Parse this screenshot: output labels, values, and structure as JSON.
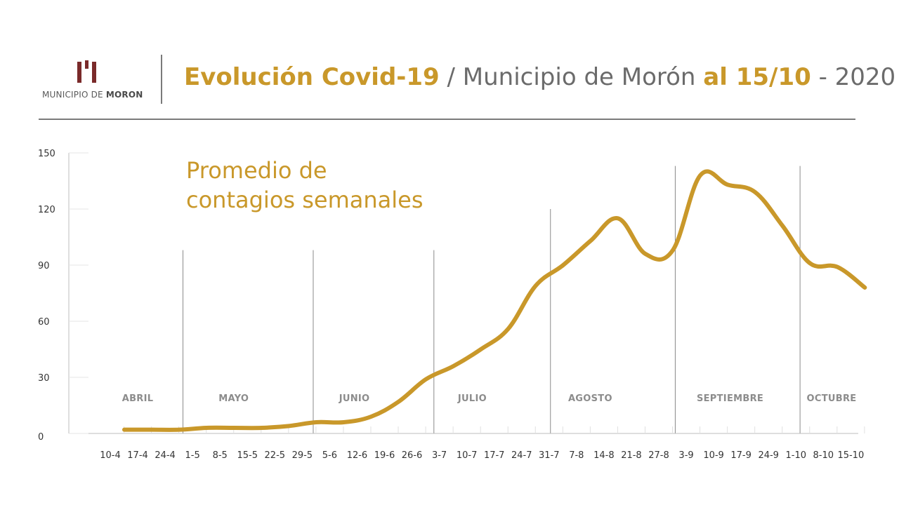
{
  "header": {
    "logo_prefix": "MUNICIPIO DE ",
    "logo_bold": "MORON",
    "title_part1": "Evolución Covid-19",
    "title_part2": " / Municipio de Morón ",
    "title_part3": "al 15/10",
    "title_part4": " - 2020"
  },
  "colors": {
    "accent": "#c9982a",
    "line": "#c9982a",
    "logo": "#7a2a2a",
    "text_gray": "#6b6b6b",
    "month_label": "#8c8c8c"
  },
  "chart_data": {
    "type": "line",
    "subtitle_line1": "Promedio de",
    "subtitle_line2": "contagios semanales",
    "ylim": [
      0,
      150
    ],
    "yticks": [
      0,
      30,
      60,
      90,
      120,
      150
    ],
    "categories": [
      "10-4",
      "17-4",
      "24-4",
      "1-5",
      "8-5",
      "15-5",
      "22-5",
      "29-5",
      "5-6",
      "12-6",
      "19-6",
      "26-6",
      "3-7",
      "10-7",
      "17-7",
      "24-7",
      "31-7",
      "7-8",
      "14-8",
      "21-8",
      "27-8",
      "3-9",
      "10-9",
      "17-9",
      "24-9",
      "1-10",
      "8-10",
      "15-10"
    ],
    "series": [
      {
        "values": [
          2,
          2,
          2,
          3,
          3,
          3,
          4,
          6,
          6,
          9,
          17,
          29,
          36,
          45,
          56,
          79,
          90,
          103,
          115,
          96,
          98,
          138,
          133,
          129,
          111,
          91,
          89,
          78
        ]
      }
    ],
    "months": [
      {
        "label": "ABRIL",
        "center": 1
      },
      {
        "label": "MAYO",
        "center": 4.5
      },
      {
        "label": "JUNIO",
        "center": 8.9
      },
      {
        "label": "JULIO",
        "center": 13.2
      },
      {
        "label": "AGOSTO",
        "center": 17.5
      },
      {
        "label": "SEPTIEMBRE",
        "center": 22.6
      },
      {
        "label": "OCTUBRE",
        "center": 26.3
      }
    ],
    "month_dividers": [
      {
        "x": 2.65,
        "top": 98
      },
      {
        "x": 7.4,
        "top": 98
      },
      {
        "x": 11.8,
        "top": 98
      },
      {
        "x": 16.05,
        "top": 120
      },
      {
        "x": 20.6,
        "top": 143
      },
      {
        "x": 25.15,
        "top": 143
      }
    ],
    "grid": false
  }
}
